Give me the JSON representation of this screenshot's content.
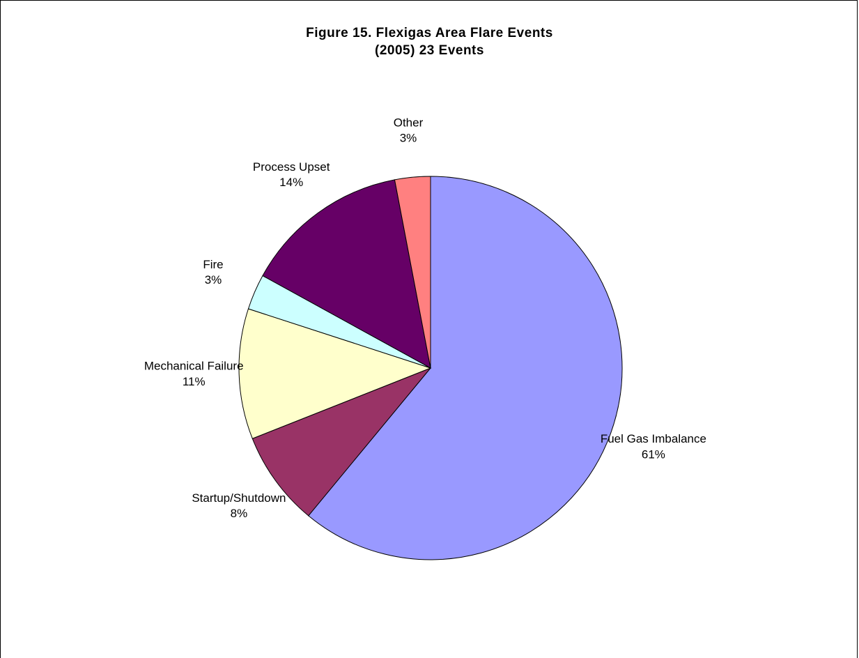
{
  "chart_data": {
    "type": "pie",
    "title": "Figure 15. Flexigas Area Flare Events",
    "subtitle": "(2005)  23 Events",
    "slices": [
      {
        "label": "Fuel Gas Imbalance",
        "value": 61,
        "display": "61%",
        "color": "#9999ff"
      },
      {
        "label": "Startup/Shutdown",
        "value": 8,
        "display": "8%",
        "color": "#993366"
      },
      {
        "label": "Mechanical Failure",
        "value": 11,
        "display": "11%",
        "color": "#ffffcc"
      },
      {
        "label": "Fire",
        "value": 3,
        "display": "3%",
        "color": "#ccffff"
      },
      {
        "label": "Process Upset",
        "value": 14,
        "display": "14%",
        "color": "#660066"
      },
      {
        "label": "Other",
        "value": 3,
        "display": "3%",
        "color": "#ff8080"
      }
    ],
    "start_angle": "12 o'clock",
    "direction": "clockwise",
    "legend": "none",
    "label_style": "category name and percent"
  }
}
